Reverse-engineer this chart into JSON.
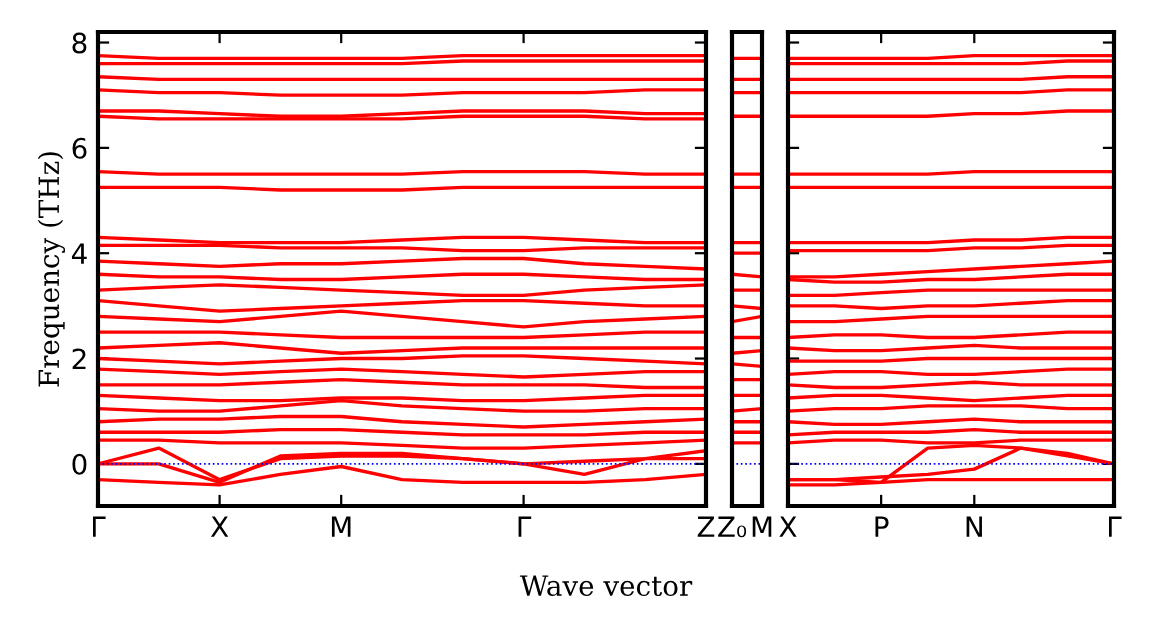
{
  "chart_data": [
    {
      "type": "line",
      "ylabel": "Frequency (THz)",
      "xlabel": "Wave vector",
      "categories": [
        "Γ",
        null,
        "X",
        null,
        "M",
        null,
        null,
        "Γ",
        null,
        null,
        "Z"
      ],
      "ylim": [
        -0.8,
        8.2
      ],
      "yticks": [
        0,
        2,
        4,
        6,
        8
      ],
      "ref_lines": [
        {
          "axis": "y",
          "value": 0,
          "color": "#0000ff",
          "line_style": "dotted"
        }
      ],
      "series": [
        {
          "color": "#ff0000",
          "values": [
            7.75,
            7.7,
            7.7,
            7.7,
            7.7,
            7.7,
            7.75,
            7.75,
            7.75,
            7.75,
            7.75
          ]
        },
        {
          "color": "#ff0000",
          "values": [
            7.6,
            7.6,
            7.6,
            7.6,
            7.6,
            7.6,
            7.65,
            7.65,
            7.65,
            7.65,
            7.65
          ]
        },
        {
          "color": "#ff0000",
          "values": [
            7.35,
            7.3,
            7.3,
            7.3,
            7.3,
            7.3,
            7.3,
            7.3,
            7.3,
            7.3,
            7.3
          ]
        },
        {
          "color": "#ff0000",
          "values": [
            7.1,
            7.05,
            7.05,
            7.0,
            7.0,
            7.0,
            7.05,
            7.05,
            7.05,
            7.1,
            7.1
          ]
        },
        {
          "color": "#ff0000",
          "values": [
            6.7,
            6.7,
            6.65,
            6.6,
            6.6,
            6.65,
            6.7,
            6.7,
            6.7,
            6.65,
            6.65
          ]
        },
        {
          "color": "#ff0000",
          "values": [
            6.6,
            6.55,
            6.55,
            6.55,
            6.55,
            6.55,
            6.6,
            6.6,
            6.6,
            6.55,
            6.55
          ]
        },
        {
          "color": "#ff0000",
          "values": [
            5.55,
            5.5,
            5.5,
            5.5,
            5.5,
            5.5,
            5.55,
            5.55,
            5.55,
            5.5,
            5.5
          ]
        },
        {
          "color": "#ff0000",
          "values": [
            5.25,
            5.25,
            5.25,
            5.2,
            5.2,
            5.2,
            5.25,
            5.25,
            5.25,
            5.25,
            5.25
          ]
        },
        {
          "color": "#ff0000",
          "values": [
            4.3,
            4.25,
            4.2,
            4.2,
            4.2,
            4.25,
            4.3,
            4.3,
            4.25,
            4.2,
            4.2
          ]
        },
        {
          "color": "#ff0000",
          "values": [
            4.15,
            4.15,
            4.15,
            4.1,
            4.1,
            4.1,
            4.05,
            4.05,
            4.1,
            4.1,
            4.1
          ]
        },
        {
          "color": "#ff0000",
          "values": [
            3.85,
            3.8,
            3.75,
            3.8,
            3.8,
            3.85,
            3.9,
            3.9,
            3.8,
            3.75,
            3.7
          ]
        },
        {
          "color": "#ff0000",
          "values": [
            3.6,
            3.55,
            3.55,
            3.5,
            3.5,
            3.55,
            3.6,
            3.6,
            3.55,
            3.5,
            3.5
          ]
        },
        {
          "color": "#ff0000",
          "values": [
            3.3,
            3.35,
            3.4,
            3.35,
            3.3,
            3.25,
            3.2,
            3.2,
            3.3,
            3.35,
            3.4
          ]
        },
        {
          "color": "#ff0000",
          "values": [
            3.1,
            3.0,
            2.9,
            2.95,
            3.0,
            3.05,
            3.1,
            3.1,
            3.05,
            3.0,
            3.0
          ]
        },
        {
          "color": "#ff0000",
          "values": [
            2.8,
            2.75,
            2.7,
            2.8,
            2.9,
            2.8,
            2.7,
            2.6,
            2.7,
            2.75,
            2.8
          ]
        },
        {
          "color": "#ff0000",
          "values": [
            2.5,
            2.5,
            2.5,
            2.45,
            2.4,
            2.4,
            2.4,
            2.4,
            2.45,
            2.5,
            2.5
          ]
        },
        {
          "color": "#ff0000",
          "values": [
            2.2,
            2.25,
            2.3,
            2.2,
            2.1,
            2.15,
            2.2,
            2.2,
            2.2,
            2.2,
            2.2
          ]
        },
        {
          "color": "#ff0000",
          "values": [
            2.0,
            1.95,
            1.9,
            1.95,
            2.0,
            2.0,
            2.05,
            2.05,
            2.0,
            1.95,
            1.9
          ]
        },
        {
          "color": "#ff0000",
          "values": [
            1.8,
            1.75,
            1.7,
            1.75,
            1.8,
            1.75,
            1.7,
            1.65,
            1.7,
            1.75,
            1.75
          ]
        },
        {
          "color": "#ff0000",
          "values": [
            1.5,
            1.5,
            1.5,
            1.55,
            1.6,
            1.55,
            1.5,
            1.5,
            1.5,
            1.45,
            1.45
          ]
        },
        {
          "color": "#ff0000",
          "values": [
            1.3,
            1.25,
            1.2,
            1.2,
            1.25,
            1.25,
            1.2,
            1.2,
            1.25,
            1.3,
            1.3
          ]
        },
        {
          "color": "#ff0000",
          "values": [
            1.05,
            1.0,
            1.0,
            1.1,
            1.2,
            1.1,
            1.05,
            1.0,
            1.0,
            1.05,
            1.05
          ]
        },
        {
          "color": "#ff0000",
          "values": [
            0.8,
            0.85,
            0.85,
            0.9,
            0.9,
            0.8,
            0.75,
            0.7,
            0.75,
            0.8,
            0.85
          ]
        },
        {
          "color": "#ff0000",
          "values": [
            0.6,
            0.6,
            0.6,
            0.65,
            0.65,
            0.6,
            0.55,
            0.55,
            0.55,
            0.6,
            0.6
          ]
        },
        {
          "color": "#ff0000",
          "values": [
            0.45,
            0.45,
            0.4,
            0.4,
            0.4,
            0.35,
            0.3,
            0.3,
            0.35,
            0.4,
            0.45
          ]
        },
        {
          "color": "#ff0000",
          "values": [
            0,
            0.3,
            -0.3,
            0.1,
            0.15,
            0.15,
            0.1,
            0,
            0.05,
            0.1,
            0.25
          ]
        },
        {
          "color": "#ff0000",
          "values": [
            0,
            0,
            -0.35,
            0.15,
            0.2,
            0.2,
            0.1,
            0,
            -0.2,
            0.1,
            0.1
          ]
        },
        {
          "color": "#ff0000",
          "values": [
            -0.3,
            -0.35,
            -0.4,
            -0.2,
            -0.05,
            -0.3,
            -0.35,
            -0.35,
            -0.35,
            -0.3,
            -0.2
          ]
        }
      ]
    },
    {
      "type": "line",
      "tick_labels": "x",
      "categories": [
        "Z₀",
        "M"
      ],
      "ylim": [
        -0.8,
        8.2
      ],
      "yticks": [
        0,
        2,
        4,
        6,
        8
      ],
      "ref_lines": [
        {
          "axis": "y",
          "value": 0,
          "color": "#0000ff",
          "line_style": "dotted"
        }
      ],
      "series": [
        {
          "color": "#ff0000",
          "values": [
            7.7,
            7.7
          ]
        },
        {
          "color": "#ff0000",
          "values": [
            7.3,
            7.3
          ]
        },
        {
          "color": "#ff0000",
          "values": [
            7.05,
            7.05
          ]
        },
        {
          "color": "#ff0000",
          "values": [
            6.6,
            6.6
          ]
        },
        {
          "color": "#ff0000",
          "values": [
            5.5,
            5.5
          ]
        },
        {
          "color": "#ff0000",
          "values": [
            5.25,
            5.25
          ]
        },
        {
          "color": "#ff0000",
          "values": [
            4.2,
            4.2
          ]
        },
        {
          "color": "#ff0000",
          "values": [
            4.0,
            4.0
          ]
        },
        {
          "color": "#ff0000",
          "values": [
            3.6,
            3.55
          ]
        },
        {
          "color": "#ff0000",
          "values": [
            3.3,
            3.3
          ]
        },
        {
          "color": "#ff0000",
          "values": [
            3.0,
            2.95
          ]
        },
        {
          "color": "#ff0000",
          "values": [
            2.7,
            2.8
          ]
        },
        {
          "color": "#ff0000",
          "values": [
            2.4,
            2.4
          ]
        },
        {
          "color": "#ff0000",
          "values": [
            2.1,
            2.15
          ]
        },
        {
          "color": "#ff0000",
          "values": [
            1.9,
            1.85
          ]
        },
        {
          "color": "#ff0000",
          "values": [
            1.6,
            1.6
          ]
        },
        {
          "color": "#ff0000",
          "values": [
            1.3,
            1.3
          ]
        },
        {
          "color": "#ff0000",
          "values": [
            1.0,
            1.05
          ]
        },
        {
          "color": "#ff0000",
          "values": [
            0.8,
            0.8
          ]
        },
        {
          "color": "#ff0000",
          "values": [
            0.6,
            0.6
          ]
        },
        {
          "color": "#ff0000",
          "values": [
            0.4,
            0.4
          ]
        }
      ]
    },
    {
      "type": "line",
      "tick_labels": "x",
      "categories": [
        "X",
        null,
        "P",
        null,
        "N",
        null,
        null,
        "Γ"
      ],
      "ylim": [
        -0.8,
        8.2
      ],
      "yticks": [
        0,
        2,
        4,
        6,
        8
      ],
      "ref_lines": [
        {
          "axis": "y",
          "value": 0,
          "color": "#0000ff",
          "line_style": "dotted"
        }
      ],
      "series": [
        {
          "color": "#ff0000",
          "values": [
            7.7,
            7.7,
            7.7,
            7.7,
            7.75,
            7.75,
            7.75,
            7.75
          ]
        },
        {
          "color": "#ff0000",
          "values": [
            7.6,
            7.6,
            7.6,
            7.6,
            7.6,
            7.6,
            7.65,
            7.65
          ]
        },
        {
          "color": "#ff0000",
          "values": [
            7.3,
            7.3,
            7.3,
            7.3,
            7.3,
            7.3,
            7.35,
            7.35
          ]
        },
        {
          "color": "#ff0000",
          "values": [
            7.05,
            7.05,
            7.05,
            7.05,
            7.05,
            7.05,
            7.1,
            7.1
          ]
        },
        {
          "color": "#ff0000",
          "values": [
            6.6,
            6.6,
            6.6,
            6.6,
            6.65,
            6.65,
            6.7,
            6.7
          ]
        },
        {
          "color": "#ff0000",
          "values": [
            5.5,
            5.5,
            5.5,
            5.5,
            5.55,
            5.55,
            5.55,
            5.55
          ]
        },
        {
          "color": "#ff0000",
          "values": [
            5.25,
            5.25,
            5.25,
            5.25,
            5.25,
            5.25,
            5.25,
            5.25
          ]
        },
        {
          "color": "#ff0000",
          "values": [
            4.2,
            4.2,
            4.2,
            4.2,
            4.25,
            4.25,
            4.3,
            4.3
          ]
        },
        {
          "color": "#ff0000",
          "values": [
            4.05,
            4.05,
            4.05,
            4.05,
            4.1,
            4.1,
            4.15,
            4.15
          ]
        },
        {
          "color": "#ff0000",
          "values": [
            3.55,
            3.55,
            3.6,
            3.65,
            3.7,
            3.75,
            3.8,
            3.85
          ]
        },
        {
          "color": "#ff0000",
          "values": [
            3.5,
            3.45,
            3.45,
            3.5,
            3.5,
            3.55,
            3.6,
            3.6
          ]
        },
        {
          "color": "#ff0000",
          "values": [
            3.2,
            3.2,
            3.25,
            3.3,
            3.3,
            3.3,
            3.3,
            3.3
          ]
        },
        {
          "color": "#ff0000",
          "values": [
            3.0,
            3.0,
            2.95,
            3.0,
            3.0,
            3.05,
            3.1,
            3.1
          ]
        },
        {
          "color": "#ff0000",
          "values": [
            2.7,
            2.7,
            2.75,
            2.8,
            2.8,
            2.8,
            2.8,
            2.8
          ]
        },
        {
          "color": "#ff0000",
          "values": [
            2.4,
            2.45,
            2.45,
            2.4,
            2.4,
            2.45,
            2.5,
            2.5
          ]
        },
        {
          "color": "#ff0000",
          "values": [
            2.2,
            2.15,
            2.15,
            2.2,
            2.25,
            2.2,
            2.2,
            2.2
          ]
        },
        {
          "color": "#ff0000",
          "values": [
            1.95,
            1.95,
            1.95,
            2.0,
            2.0,
            2.0,
            2.0,
            2.0
          ]
        },
        {
          "color": "#ff0000",
          "values": [
            1.7,
            1.75,
            1.75,
            1.7,
            1.7,
            1.75,
            1.8,
            1.8
          ]
        },
        {
          "color": "#ff0000",
          "values": [
            1.5,
            1.45,
            1.45,
            1.5,
            1.55,
            1.5,
            1.5,
            1.5
          ]
        },
        {
          "color": "#ff0000",
          "values": [
            1.25,
            1.3,
            1.3,
            1.25,
            1.2,
            1.25,
            1.3,
            1.3
          ]
        },
        {
          "color": "#ff0000",
          "values": [
            1.0,
            1.05,
            1.05,
            1.1,
            1.1,
            1.1,
            1.05,
            1.05
          ]
        },
        {
          "color": "#ff0000",
          "values": [
            0.8,
            0.75,
            0.75,
            0.8,
            0.85,
            0.8,
            0.8,
            0.8
          ]
        },
        {
          "color": "#ff0000",
          "values": [
            0.55,
            0.6,
            0.6,
            0.6,
            0.65,
            0.6,
            0.6,
            0.6
          ]
        },
        {
          "color": "#ff0000",
          "values": [
            0.4,
            0.45,
            0.45,
            0.4,
            0.4,
            0.45,
            0.45,
            0.45
          ]
        },
        {
          "color": "#ff0000",
          "values": [
            -0.3,
            -0.3,
            -0.35,
            -0.3,
            -0.3,
            -0.3,
            -0.3,
            -0.3
          ]
        },
        {
          "color": "#ff0000",
          "values": [
            -0.4,
            -0.4,
            -0.35,
            0.3,
            0.35,
            0.3,
            0.15,
            0
          ]
        },
        {
          "color": "#ff0000",
          "values": [
            -0.3,
            -0.3,
            -0.25,
            -0.2,
            -0.1,
            0.3,
            0.2,
            0
          ]
        }
      ]
    }
  ]
}
